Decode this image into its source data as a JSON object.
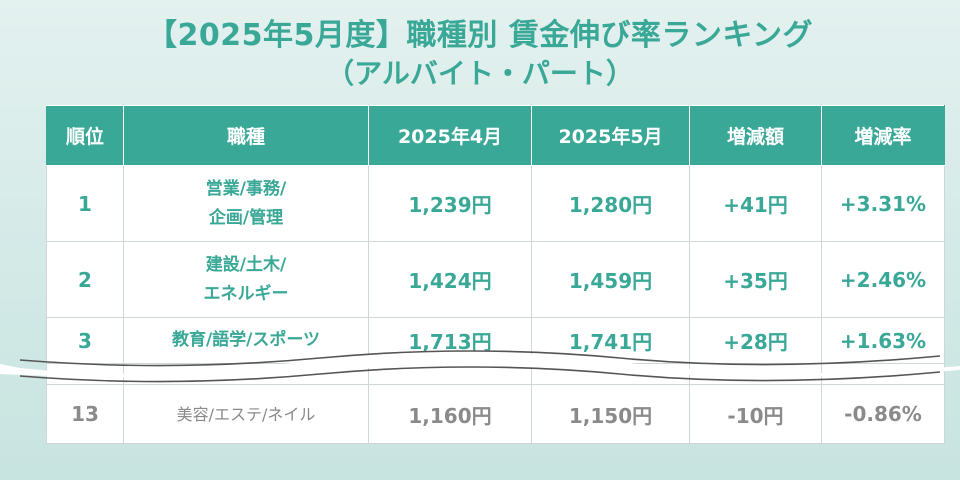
{
  "title": {
    "line1": "【2025年5月度】職種別 賃金伸び率ランキング",
    "line2": "（アルバイト・パート）"
  },
  "colors": {
    "accent": "#3aa897",
    "muted": "#8a8a8a",
    "border": "#cfd7d6"
  },
  "chart_data": {
    "type": "table",
    "columns": [
      "順位",
      "職種",
      "2025年4月",
      "2025年5月",
      "増減額",
      "増減率"
    ],
    "rows": [
      {
        "rank": "1",
        "job_line1": "営業/事務/",
        "job_line2": "企画/管理",
        "apr": "1,239円",
        "may": "1,280円",
        "diff": "+41円",
        "rate": "+3.31%"
      },
      {
        "rank": "2",
        "job_line1": "建設/土木/",
        "job_line2": "エネルギー",
        "apr": "1,424円",
        "may": "1,459円",
        "diff": "+35円",
        "rate": "+2.46%"
      },
      {
        "rank": "3",
        "job_line1": "教育/語学/スポーツ",
        "job_line2": "",
        "apr": "1,713円",
        "may": "1,741円",
        "diff": "+28円",
        "rate": "+1.63%"
      },
      {
        "rank": "13",
        "job_line1": "美容/エステ/ネイル",
        "job_line2": "",
        "apr": "1,160円",
        "may": "1,150円",
        "diff": "-10円",
        "rate": "-0.86%"
      }
    ]
  }
}
